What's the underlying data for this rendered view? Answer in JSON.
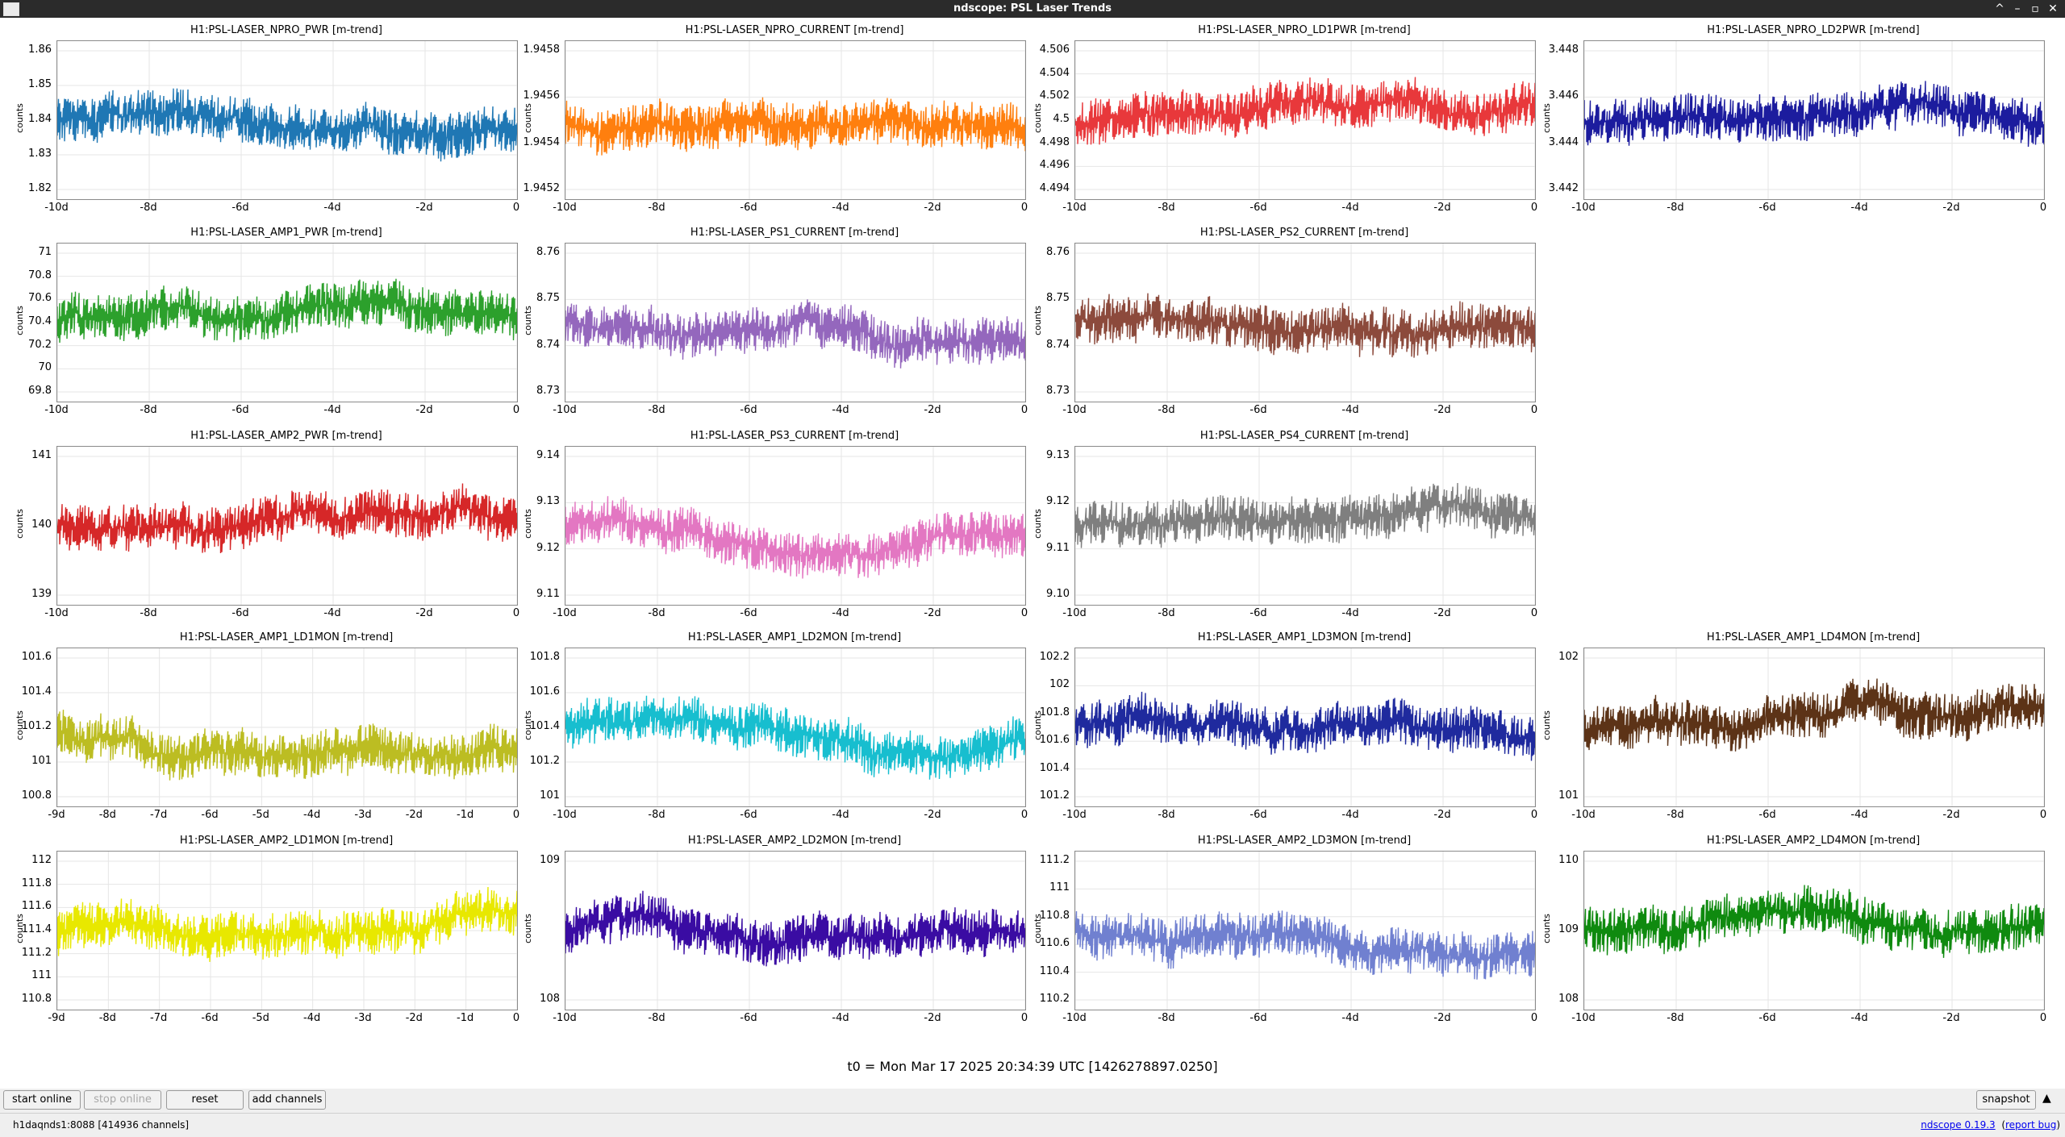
{
  "window": {
    "title": "ndscope: PSL Laser Trends",
    "buttons": [
      "^",
      "–",
      "▫",
      "✕"
    ]
  },
  "plots": [
    {
      "title": "H1:PSL-LASER_NPRO_PWR [m-trend]",
      "ylabel": "counts",
      "color": "#1f77b4",
      "yticks": [
        "1.86",
        "1.85",
        "1.84",
        "1.83",
        "1.82"
      ],
      "xticks": [
        "-10d",
        "-8d",
        "-6d",
        "-4d",
        "-2d",
        "0"
      ]
    },
    {
      "title": "H1:PSL-LASER_NPRO_CURRENT [m-trend]",
      "ylabel": "counts",
      "color": "#ff7f0e",
      "yticks": [
        "1.9458",
        "1.9456",
        "1.9454",
        "1.9452"
      ],
      "xticks": [
        "-10d",
        "-8d",
        "-6d",
        "-4d",
        "-2d",
        "0"
      ]
    },
    {
      "title": "H1:PSL-LASER_NPRO_LD1PWR [m-trend]",
      "ylabel": "counts",
      "color": "#e8383b",
      "yticks": [
        "4.506",
        "4.504",
        "4.502",
        "4.5",
        "4.498",
        "4.496",
        "4.494"
      ],
      "xticks": [
        "-10d",
        "-8d",
        "-6d",
        "-4d",
        "-2d",
        "0"
      ]
    },
    {
      "title": "H1:PSL-LASER_NPRO_LD2PWR [m-trend]",
      "ylabel": "counts",
      "color": "#1c1c9e",
      "yticks": [
        "3.448",
        "3.446",
        "3.444",
        "3.442"
      ],
      "xticks": [
        "-10d",
        "-8d",
        "-6d",
        "-4d",
        "-2d",
        "0"
      ]
    },
    {
      "title": "H1:PSL-LASER_AMP1_PWR [m-trend]",
      "ylabel": "counts",
      "color": "#2ca02c",
      "yticks": [
        "71",
        "70.8",
        "70.6",
        "70.4",
        "70.2",
        "70",
        "69.8"
      ],
      "xticks": [
        "-10d",
        "-8d",
        "-6d",
        "-4d",
        "-2d",
        "0"
      ]
    },
    {
      "title": "H1:PSL-LASER_PS1_CURRENT [m-trend]",
      "ylabel": "counts",
      "color": "#9467bd",
      "yticks": [
        "8.76",
        "8.75",
        "8.74",
        "8.73"
      ],
      "xticks": [
        "-10d",
        "-8d",
        "-6d",
        "-4d",
        "-2d",
        "0"
      ]
    },
    {
      "title": "H1:PSL-LASER_PS2_CURRENT [m-trend]",
      "ylabel": "counts",
      "color": "#8c4a3c",
      "yticks": [
        "8.76",
        "8.75",
        "8.74",
        "8.73"
      ],
      "xticks": [
        "-10d",
        "-8d",
        "-6d",
        "-4d",
        "-2d",
        "0"
      ]
    },
    {
      "title": "H1:PSL-LASER_AMP2_PWR [m-trend]",
      "ylabel": "counts",
      "color": "#d62728",
      "yticks": [
        "141",
        "140",
        "139"
      ],
      "xticks": [
        "-10d",
        "-8d",
        "-6d",
        "-4d",
        "-2d",
        "0"
      ]
    },
    {
      "title": "H1:PSL-LASER_PS3_CURRENT [m-trend]",
      "ylabel": "counts",
      "color": "#e377c2",
      "yticks": [
        "9.14",
        "9.13",
        "9.12",
        "9.11"
      ],
      "xticks": [
        "-10d",
        "-8d",
        "-6d",
        "-4d",
        "-2d",
        "0"
      ]
    },
    {
      "title": "H1:PSL-LASER_PS4_CURRENT [m-trend]",
      "ylabel": "counts",
      "color": "#7f7f7f",
      "yticks": [
        "9.13",
        "9.12",
        "9.11",
        "9.10"
      ],
      "xticks": [
        "-10d",
        "-8d",
        "-6d",
        "-4d",
        "-2d",
        "0"
      ]
    },
    {
      "title": "H1:PSL-LASER_AMP1_LD1MON [m-trend]",
      "ylabel": "counts",
      "color": "#bcbd22",
      "yticks": [
        "101.6",
        "101.4",
        "101.2",
        "101",
        "100.8"
      ],
      "xticks": [
        "-9d",
        "-8d",
        "-7d",
        "-6d",
        "-5d",
        "-4d",
        "-3d",
        "-2d",
        "-1d",
        "0"
      ]
    },
    {
      "title": "H1:PSL-LASER_AMP1_LD2MON [m-trend]",
      "ylabel": "counts",
      "color": "#17becf",
      "yticks": [
        "101.8",
        "101.6",
        "101.4",
        "101.2",
        "101"
      ],
      "xticks": [
        "-10d",
        "-8d",
        "-6d",
        "-4d",
        "-2d",
        "0"
      ]
    },
    {
      "title": "H1:PSL-LASER_AMP1_LD3MON [m-trend]",
      "ylabel": "counts",
      "color": "#1f2a9e",
      "yticks": [
        "102.2",
        "102",
        "101.8",
        "101.6",
        "101.4",
        "101.2"
      ],
      "xticks": [
        "-10d",
        "-8d",
        "-6d",
        "-4d",
        "-2d",
        "0"
      ]
    },
    {
      "title": "H1:PSL-LASER_AMP1_LD4MON [m-trend]",
      "ylabel": "counts",
      "color": "#5c3317",
      "yticks": [
        "102",
        "101"
      ],
      "xticks": [
        "-10d",
        "-8d",
        "-6d",
        "-4d",
        "-2d",
        "0"
      ]
    },
    {
      "title": "H1:PSL-LASER_AMP2_LD1MON [m-trend]",
      "ylabel": "counts",
      "color": "#e8e800",
      "yticks": [
        "112",
        "111.8",
        "111.6",
        "111.4",
        "111.2",
        "111",
        "110.8"
      ],
      "xticks": [
        "-9d",
        "-8d",
        "-7d",
        "-6d",
        "-5d",
        "-4d",
        "-3d",
        "-2d",
        "-1d",
        "0"
      ]
    },
    {
      "title": "H1:PSL-LASER_AMP2_LD2MON [m-trend]",
      "ylabel": "counts",
      "color": "#3a0ca3",
      "yticks": [
        "109",
        "108"
      ],
      "xticks": [
        "-10d",
        "-8d",
        "-6d",
        "-4d",
        "-2d",
        "0"
      ]
    },
    {
      "title": "H1:PSL-LASER_AMP2_LD3MON [m-trend]",
      "ylabel": "counts",
      "color": "#7080d0",
      "yticks": [
        "111.2",
        "111",
        "110.8",
        "110.6",
        "110.4",
        "110.2"
      ],
      "xticks": [
        "-10d",
        "-8d",
        "-6d",
        "-4d",
        "-2d",
        "0"
      ]
    },
    {
      "title": "H1:PSL-LASER_AMP2_LD4MON [m-trend]",
      "ylabel": "counts",
      "color": "#0f8a0f",
      "yticks": [
        "110",
        "109",
        "108"
      ],
      "xticks": [
        "-10d",
        "-8d",
        "-6d",
        "-4d",
        "-2d",
        "0"
      ]
    }
  ],
  "t0": "t0 = Mon Mar 17 2025 20:34:39 UTC [1426278897.0250]",
  "controls": {
    "start_online": "start online",
    "stop_online": "stop online",
    "reset": "reset",
    "add_channels": "add channels",
    "snapshot": "snapshot"
  },
  "status": {
    "server": "h1daqnds1:8088  [414936 channels]",
    "version_link": "ndscope 0.19.3",
    "report_link": "report bug"
  }
}
